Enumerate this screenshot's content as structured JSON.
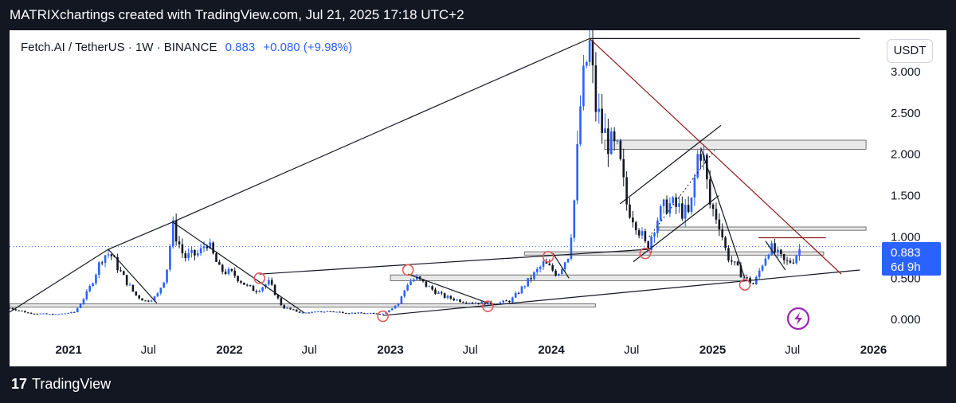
{
  "header": {
    "text": "MATRIXchartings created with TradingView.com, Jul 21, 2025 17:18 UTC+2"
  },
  "legend": {
    "symbol": "Fetch.AI / TetherUS · 1W · BINANCE",
    "price": "0.883",
    "change": "+0.080 (+9.98%)"
  },
  "currency_button": "USDT",
  "price_label": {
    "price": "0.883",
    "countdown": "6d 9h"
  },
  "footer": {
    "logo": "17",
    "brand": "TradingView"
  },
  "colors": {
    "up": "#2962ff",
    "down": "#131722",
    "accent": "#2962ff",
    "trendline": "#131722",
    "red_line": "#8b1a1a",
    "marker": "#e05a5a",
    "zone_fill": "#e8e8e8"
  },
  "chart_data": {
    "type": "candlestick",
    "title": "Fetch.AI / TetherUS · 1W · BINANCE",
    "x_ticks": [
      {
        "label": "2021",
        "date": "2021-01-01",
        "bold": true
      },
      {
        "label": "Jul",
        "date": "2021-07-01",
        "bold": false
      },
      {
        "label": "2022",
        "date": "2022-01-01",
        "bold": true
      },
      {
        "label": "Jul",
        "date": "2022-07-01",
        "bold": false
      },
      {
        "label": "2023",
        "date": "2023-01-01",
        "bold": true
      },
      {
        "label": "Jul",
        "date": "2023-07-01",
        "bold": false
      },
      {
        "label": "2024",
        "date": "2024-01-01",
        "bold": true
      },
      {
        "label": "Jul",
        "date": "2024-07-01",
        "bold": false
      },
      {
        "label": "2025",
        "date": "2025-01-01",
        "bold": true
      },
      {
        "label": "Jul",
        "date": "2025-07-01",
        "bold": false
      },
      {
        "label": "2026",
        "date": "2026-01-01",
        "bold": true
      }
    ],
    "y_ticks": [
      "3.000",
      "2.500",
      "2.000",
      "1.500",
      "1.000",
      "0.500",
      "0.000"
    ],
    "y_tick_values": [
      3.0,
      2.5,
      2.0,
      1.5,
      1.0,
      0.5,
      0.0
    ],
    "ylim": [
      -0.2,
      3.5
    ],
    "xlim": [
      "2020-08-20",
      "2026-01-20"
    ],
    "last_price": 0.883,
    "price_path": [
      [
        "2020-08-20",
        0.14
      ],
      [
        "2020-10-01",
        0.08
      ],
      [
        "2020-12-01",
        0.06
      ],
      [
        "2021-01-15",
        0.09
      ],
      [
        "2021-02-15",
        0.35
      ],
      [
        "2021-03-20",
        0.78
      ],
      [
        "2021-04-05",
        0.8
      ],
      [
        "2021-05-01",
        0.55
      ],
      [
        "2021-06-01",
        0.3
      ],
      [
        "2021-06-25",
        0.22
      ],
      [
        "2021-07-20",
        0.28
      ],
      [
        "2021-08-10",
        0.55
      ],
      [
        "2021-08-25",
        1.13
      ],
      [
        "2021-09-20",
        0.75
      ],
      [
        "2021-10-25",
        0.8
      ],
      [
        "2021-11-10",
        0.95
      ],
      [
        "2021-12-10",
        0.6
      ],
      [
        "2022-01-10",
        0.55
      ],
      [
        "2022-02-10",
        0.4
      ],
      [
        "2022-03-01",
        0.35
      ],
      [
        "2022-04-01",
        0.45
      ],
      [
        "2022-05-01",
        0.15
      ],
      [
        "2022-06-15",
        0.08
      ],
      [
        "2022-08-15",
        0.1
      ],
      [
        "2022-10-01",
        0.08
      ],
      [
        "2022-12-15",
        0.07
      ],
      [
        "2023-01-20",
        0.2
      ],
      [
        "2023-02-10",
        0.45
      ],
      [
        "2023-03-01",
        0.5
      ],
      [
        "2023-04-01",
        0.38
      ],
      [
        "2023-05-01",
        0.28
      ],
      [
        "2023-06-15",
        0.22
      ],
      [
        "2023-08-01",
        0.2
      ],
      [
        "2023-09-01",
        0.2
      ],
      [
        "2023-10-01",
        0.23
      ],
      [
        "2023-11-15",
        0.5
      ],
      [
        "2023-12-15",
        0.68
      ],
      [
        "2024-01-15",
        0.55
      ],
      [
        "2024-02-10",
        0.8
      ],
      [
        "2024-02-25",
        1.6
      ],
      [
        "2024-03-05",
        2.5
      ],
      [
        "2024-03-20",
        3.1
      ],
      [
        "2024-03-28",
        3.3
      ],
      [
        "2024-04-10",
        2.6
      ],
      [
        "2024-04-25",
        2.3
      ],
      [
        "2024-05-15",
        2.1
      ],
      [
        "2024-06-01",
        2.0
      ],
      [
        "2024-06-20",
        1.4
      ],
      [
        "2024-07-10",
        1.2
      ],
      [
        "2024-08-05",
        0.85
      ],
      [
        "2024-08-25",
        1.2
      ],
      [
        "2024-09-20",
        1.4
      ],
      [
        "2024-10-15",
        1.35
      ],
      [
        "2024-11-10",
        1.25
      ],
      [
        "2024-12-01",
        2.1
      ],
      [
        "2024-12-10",
        2.0
      ],
      [
        "2024-12-25",
        1.4
      ],
      [
        "2025-01-15",
        1.2
      ],
      [
        "2025-02-01",
        0.8
      ],
      [
        "2025-02-20",
        0.65
      ],
      [
        "2025-03-15",
        0.5
      ],
      [
        "2025-04-05",
        0.42
      ],
      [
        "2025-04-25",
        0.7
      ],
      [
        "2025-05-10",
        0.88
      ],
      [
        "2025-05-25",
        0.8
      ],
      [
        "2025-06-15",
        0.68
      ],
      [
        "2025-07-01",
        0.72
      ],
      [
        "2025-07-21",
        0.883
      ]
    ],
    "lines": [
      {
        "from": [
          "2020-08-20",
          0.09
        ],
        "to": [
          "2021-04-01",
          0.85
        ]
      },
      {
        "from": [
          "2021-04-01",
          0.85
        ],
        "to": [
          "2021-08-25",
          1.18
        ]
      },
      {
        "from": [
          "2021-08-25",
          1.18
        ],
        "to": [
          "2024-03-28",
          3.4
        ]
      },
      {
        "from": [
          "2024-03-28",
          3.4
        ],
        "to": [
          "2025-12-01",
          3.4
        ]
      },
      {
        "from": [
          "2021-04-01",
          0.85
        ],
        "to": [
          "2021-07-20",
          0.2
        ]
      },
      {
        "from": [
          "2021-08-25",
          1.18
        ],
        "to": [
          "2022-06-20",
          0.08
        ]
      },
      {
        "from": [
          "2022-03-10",
          0.55
        ],
        "to": [
          "2024-08-10",
          0.85
        ]
      },
      {
        "from": [
          "2022-12-15",
          0.05
        ],
        "to": [
          "2025-12-01",
          0.6
        ]
      },
      {
        "from": [
          "2023-02-10",
          0.55
        ],
        "to": [
          "2023-08-10",
          0.2
        ]
      },
      {
        "from": [
          "2024-01-05",
          0.8
        ],
        "to": [
          "2024-02-10",
          0.5
        ]
      },
      {
        "from": [
          "2024-07-05",
          0.7
        ],
        "to": [
          "2025-01-15",
          1.5
        ]
      },
      {
        "from": [
          "2024-06-05",
          1.4
        ],
        "to": [
          "2025-01-20",
          2.35
        ]
      },
      {
        "from": [
          "2024-12-05",
          2.08
        ],
        "to": [
          "2025-03-15",
          0.5
        ]
      },
      {
        "from": [
          "2025-05-01",
          0.95
        ],
        "to": [
          "2025-06-15",
          0.6
        ]
      }
    ],
    "dashed_lines": [
      {
        "from": [
          "2024-08-10",
          1.0
        ],
        "to": [
          "2025-01-05",
          2.05
        ]
      }
    ],
    "red_lines": [
      {
        "from": [
          "2024-03-28",
          3.4
        ],
        "to": [
          "2025-10-20",
          0.55
        ]
      },
      {
        "from": [
          "2025-04-15",
          0.99
        ],
        "to": [
          "2025-09-15",
          0.99
        ]
      }
    ],
    "zones": [
      {
        "x": [
          "2024-05-01",
          "2025-12-15"
        ],
        "y": [
          2.06,
          2.17
        ]
      },
      {
        "x": [
          "2024-09-01",
          "2025-12-15"
        ],
        "y": [
          1.08,
          1.12
        ]
      },
      {
        "x": [
          "2023-11-01",
          "2025-09-10"
        ],
        "y": [
          0.78,
          0.82
        ]
      },
      {
        "x": [
          "2023-01-01",
          "2025-03-20"
        ],
        "y": [
          0.47,
          0.54
        ]
      },
      {
        "x": [
          "2020-08-20",
          "2024-04-10"
        ],
        "y": [
          0.15,
          0.19
        ]
      }
    ],
    "markers": [
      [
        "2022-03-10",
        0.5
      ],
      [
        "2022-12-15",
        0.04
      ],
      [
        "2023-02-10",
        0.6
      ],
      [
        "2023-08-10",
        0.16
      ],
      [
        "2023-12-25",
        0.76
      ],
      [
        "2024-08-01",
        0.8
      ],
      [
        "2025-03-15",
        0.42
      ]
    ],
    "horizontal_dotted": 0.883
  }
}
